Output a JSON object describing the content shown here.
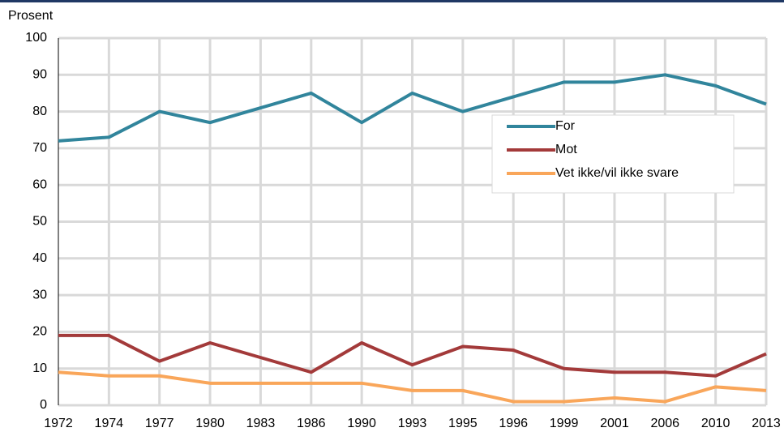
{
  "chart_data": {
    "type": "line",
    "y_label": "Prosent",
    "categories": [
      "1972",
      "1974",
      "1977",
      "1980",
      "1983",
      "1986",
      "1990",
      "1993",
      "1995",
      "1996",
      "1999",
      "2001",
      "2006",
      "2010",
      "2013"
    ],
    "series": [
      {
        "name": "For",
        "color": "#31859c",
        "values": [
          72,
          73,
          80,
          77,
          81,
          85,
          77,
          85,
          80,
          84,
          88,
          88,
          90,
          87,
          82
        ]
      },
      {
        "name": "Mot",
        "color": "#a33a3a",
        "values": [
          19,
          19,
          12,
          17,
          13,
          9,
          17,
          11,
          16,
          15,
          10,
          9,
          9,
          8,
          14
        ]
      },
      {
        "name": "Vet ikke/vil ikke svare",
        "color": "#f9a65a",
        "values": [
          9,
          8,
          8,
          6,
          6,
          6,
          6,
          4,
          4,
          1,
          1,
          2,
          1,
          5,
          4
        ]
      }
    ],
    "ylim": [
      0,
      100
    ],
    "yticks": [
      0,
      10,
      20,
      30,
      40,
      50,
      60,
      70,
      80,
      90,
      100
    ],
    "grid": true
  }
}
